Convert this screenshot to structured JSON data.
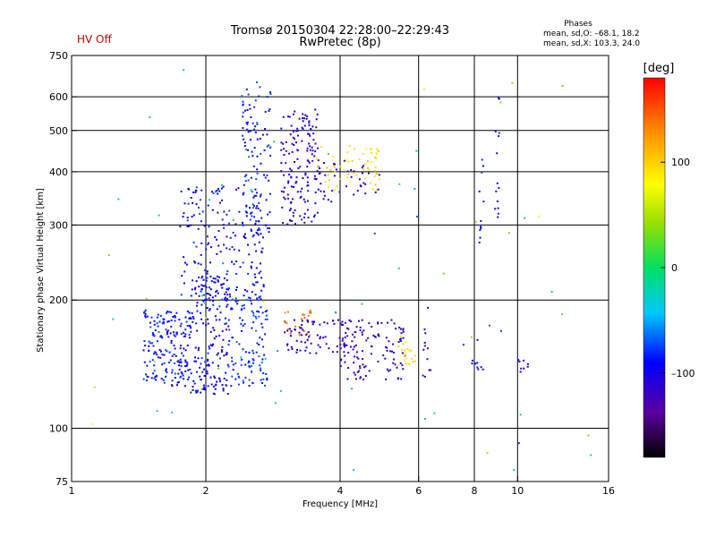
{
  "status": {
    "hv_label": "HV Off",
    "hv_color": "#cc0000"
  },
  "header": {
    "title_line1": "Tromsø 20150304 22:28:00–22:29:43",
    "title_line2": "RwPretec (8p)"
  },
  "phases": {
    "heading": "Phases",
    "o_line": "mean, sd,O: –68.1, 18.2",
    "x_line": "mean, sd,X: 103.3, 24.0"
  },
  "chart_data": {
    "type": "scatter",
    "xlabel": "Frequency [MHz]",
    "ylabel": "Stationary phase Virtual Height [km]",
    "x_scale": "log",
    "y_scale": "log",
    "xlim": [
      1,
      16
    ],
    "ylim": [
      75,
      750
    ],
    "x_ticks": [
      1,
      2,
      4,
      6,
      8,
      10,
      16
    ],
    "x_tick_labels": [
      "1",
      "2",
      "4",
      "6",
      "8",
      "10",
      "16"
    ],
    "y_ticks": [
      75,
      100,
      200,
      300,
      400,
      500,
      600,
      750
    ],
    "y_tick_labels": [
      "75",
      "100",
      "200",
      "300",
      "400",
      "500",
      "600",
      "750"
    ],
    "x_gridlines": [
      2,
      4,
      6,
      8,
      10
    ],
    "y_gridlines": [
      100,
      200,
      300,
      400,
      500,
      600
    ],
    "grid": true,
    "colorbar": {
      "unit": "[deg]",
      "ticks": [
        100,
        0,
        -100
      ],
      "tick_labels": [
        "100",
        "0",
        "–100"
      ],
      "range": [
        -180,
        180
      ]
    },
    "clusters": [
      {
        "x_range": [
          1.45,
          1.85
        ],
        "y_range": [
          125,
          190
        ],
        "phase": -85,
        "spread": 25,
        "count": 190
      },
      {
        "x_range": [
          1.85,
          2.25
        ],
        "y_range": [
          120,
          230
        ],
        "phase": -95,
        "spread": 30,
        "count": 170
      },
      {
        "x_range": [
          2.25,
          2.75
        ],
        "y_range": [
          125,
          205
        ],
        "phase": -80,
        "spread": 25,
        "count": 110
      },
      {
        "x_range": [
          1.75,
          2.7
        ],
        "y_range": [
          190,
          370
        ],
        "phase": -90,
        "spread": 30,
        "count": 200
      },
      {
        "x_range": [
          2.4,
          2.8
        ],
        "y_range": [
          280,
          650
        ],
        "phase": -85,
        "spread": 30,
        "count": 110
      },
      {
        "x_range": [
          2.95,
          3.6
        ],
        "y_range": [
          300,
          560
        ],
        "phase": -105,
        "spread": 35,
        "count": 150
      },
      {
        "x_range": [
          3.5,
          4.9
        ],
        "y_range": [
          360,
          460
        ],
        "phase": 95,
        "spread": 25,
        "count": 60
      },
      {
        "x_range": [
          3.5,
          4.9
        ],
        "y_range": [
          340,
          430
        ],
        "phase": -110,
        "spread": 25,
        "count": 40
      },
      {
        "x_range": [
          3.0,
          3.5
        ],
        "y_range": [
          160,
          190
        ],
        "phase": 140,
        "spread": 25,
        "count": 25
      },
      {
        "x_range": [
          3.0,
          4.2
        ],
        "y_range": [
          150,
          180
        ],
        "phase": -110,
        "spread": 20,
        "count": 70
      },
      {
        "x_range": [
          4.0,
          5.6
        ],
        "y_range": [
          130,
          180
        ],
        "phase": -115,
        "spread": 20,
        "count": 120
      },
      {
        "x_range": [
          5.4,
          6.0
        ],
        "y_range": [
          140,
          165
        ],
        "phase": 95,
        "spread": 15,
        "count": 20
      },
      {
        "x_range": [
          7.9,
          8.4
        ],
        "y_range": [
          135,
          145
        ],
        "phase": -100,
        "spread": 25,
        "count": 8
      },
      {
        "x_range": [
          8.2,
          8.4
        ],
        "y_range": [
          260,
          440
        ],
        "phase": -90,
        "spread": 20,
        "count": 12
      },
      {
        "x_range": [
          8.9,
          9.1
        ],
        "y_range": [
          300,
          600
        ],
        "phase": -90,
        "spread": 25,
        "count": 14
      },
      {
        "x_range": [
          10.0,
          10.6
        ],
        "y_range": [
          135,
          145
        ],
        "phase": -100,
        "spread": 15,
        "count": 8
      },
      {
        "x_range": [
          6.1,
          6.5
        ],
        "y_range": [
          130,
          200
        ],
        "phase": -100,
        "spread": 40,
        "count": 12
      },
      {
        "x_range": [
          1.05,
          15.5
        ],
        "y_range": [
          78,
          700
        ],
        "phase": 0,
        "spread": 130,
        "count": 70
      }
    ]
  }
}
